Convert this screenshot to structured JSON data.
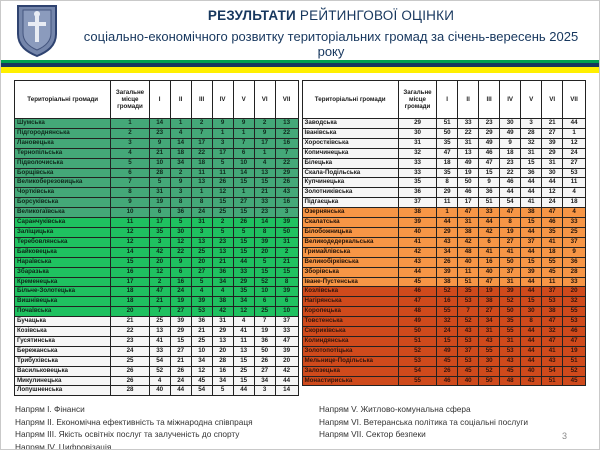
{
  "header": {
    "title_emphasis": "РЕЗУЛЬТАТИ",
    "title_rest": " РЕЙТИНГОВОЇ ОЦІНКИ",
    "subtitle": "соціально-економічного розвитку територіальних громад за січень-вересень 2025 року",
    "logo_icon": "ternopil-oblast-coat-of-arms",
    "title_color": "#17375e",
    "stripe_colors": [
      "#00a04f",
      "#17375e",
      "#ffef00"
    ]
  },
  "colors": {
    "tier_green_top10": "#44a878",
    "tier_green_11_20": "#1fc160",
    "tier_plain": "#f6f6f6",
    "tier_orange_38_45": "#f79646",
    "tier_red_46_55": "#cf4a1c"
  },
  "table": {
    "columns": [
      "Територіальні громади",
      "Загальне місце громади",
      "I",
      "II",
      "III",
      "IV",
      "V",
      "VI",
      "VII"
    ],
    "left_rows": [
      {
        "name": "Шумська",
        "place": "1",
        "scores": [
          "14",
          "1",
          "2",
          "9",
          "9",
          "2",
          "13"
        ],
        "tier": "green1"
      },
      {
        "name": "Підгороднянська",
        "place": "2",
        "scores": [
          "23",
          "4",
          "7",
          "1",
          "1",
          "9",
          "22"
        ],
        "tier": "green1"
      },
      {
        "name": "Лановецька",
        "place": "3",
        "scores": [
          "9",
          "14",
          "17",
          "3",
          "7",
          "17",
          "16"
        ],
        "tier": "green1"
      },
      {
        "name": "Тернопільська",
        "place": "4",
        "scores": [
          "21",
          "18",
          "22",
          "17",
          "6",
          "1",
          "7"
        ],
        "tier": "green1"
      },
      {
        "name": "Підволочиська",
        "place": "5",
        "scores": [
          "10",
          "34",
          "18",
          "5",
          "10",
          "4",
          "22"
        ],
        "tier": "green1"
      },
      {
        "name": "Борщівська",
        "place": "6",
        "scores": [
          "28",
          "2",
          "11",
          "11",
          "14",
          "13",
          "29"
        ],
        "tier": "green1"
      },
      {
        "name": "Великоберезовицька",
        "place": "7",
        "scores": [
          "5",
          "9",
          "13",
          "26",
          "15",
          "15",
          "26"
        ],
        "tier": "green1"
      },
      {
        "name": "Чортківська",
        "place": "8",
        "scores": [
          "31",
          "3",
          "1",
          "12",
          "1",
          "21",
          "43"
        ],
        "tier": "green1"
      },
      {
        "name": "Борсуківська",
        "place": "9",
        "scores": [
          "19",
          "8",
          "8",
          "15",
          "27",
          "33",
          "16"
        ],
        "tier": "green1"
      },
      {
        "name": "Великогаївська",
        "place": "10",
        "scores": [
          "6",
          "36",
          "24",
          "25",
          "15",
          "23",
          "3"
        ],
        "tier": "green1"
      },
      {
        "name": "Саранчуківська",
        "place": "11",
        "scores": [
          "17",
          "5",
          "31",
          "2",
          "26",
          "14",
          "39"
        ],
        "tier": "green2"
      },
      {
        "name": "Заліщицька",
        "place": "12",
        "scores": [
          "35",
          "30",
          "3",
          "5",
          "5",
          "8",
          "50"
        ],
        "tier": "green2"
      },
      {
        "name": "Теребовлянська",
        "place": "12",
        "scores": [
          "3",
          "12",
          "13",
          "23",
          "15",
          "39",
          "31"
        ],
        "tier": "green2"
      },
      {
        "name": "Байковецька",
        "place": "14",
        "scores": [
          "42",
          "22",
          "25",
          "13",
          "15",
          "20",
          "2"
        ],
        "tier": "green2"
      },
      {
        "name": "Нараївська",
        "place": "15",
        "scores": [
          "20",
          "9",
          "20",
          "21",
          "44",
          "5",
          "21"
        ],
        "tier": "green2"
      },
      {
        "name": "Збаразька",
        "place": "16",
        "scores": [
          "12",
          "6",
          "27",
          "36",
          "33",
          "15",
          "15"
        ],
        "tier": "green2"
      },
      {
        "name": "Кременецька",
        "place": "17",
        "scores": [
          "2",
          "16",
          "5",
          "34",
          "29",
          "52",
          "8"
        ],
        "tier": "green2"
      },
      {
        "name": "Більче-Золотецька",
        "place": "18",
        "scores": [
          "47",
          "24",
          "4",
          "4",
          "35",
          "10",
          "39"
        ],
        "tier": "green2"
      },
      {
        "name": "Вишнівецька",
        "place": "18",
        "scores": [
          "21",
          "19",
          "39",
          "38",
          "34",
          "6",
          "6"
        ],
        "tier": "green2"
      },
      {
        "name": "Почаївська",
        "place": "20",
        "scores": [
          "7",
          "27",
          "53",
          "42",
          "12",
          "25",
          "10"
        ],
        "tier": "green2"
      },
      {
        "name": "Бучацька",
        "place": "21",
        "scores": [
          "25",
          "39",
          "36",
          "31",
          "4",
          "7",
          "37"
        ],
        "tier": "plain"
      },
      {
        "name": "Козівська",
        "place": "22",
        "scores": [
          "13",
          "29",
          "21",
          "29",
          "41",
          "19",
          "33"
        ],
        "tier": "plain"
      },
      {
        "name": "Гусятинська",
        "place": "23",
        "scores": [
          "41",
          "15",
          "25",
          "13",
          "11",
          "36",
          "47"
        ],
        "tier": "plain"
      },
      {
        "name": "Бережанська",
        "place": "24",
        "scores": [
          "33",
          "27",
          "10",
          "20",
          "13",
          "50",
          "39"
        ],
        "tier": "plain"
      },
      {
        "name": "Трибухівська",
        "place": "25",
        "scores": [
          "54",
          "21",
          "34",
          "28",
          "15",
          "26",
          "20"
        ],
        "tier": "plain"
      },
      {
        "name": "Васильковецька",
        "place": "26",
        "scores": [
          "52",
          "26",
          "12",
          "16",
          "25",
          "27",
          "42"
        ],
        "tier": "plain"
      },
      {
        "name": "Микулинецька",
        "place": "26",
        "scores": [
          "4",
          "24",
          "45",
          "34",
          "15",
          "34",
          "44"
        ],
        "tier": "plain"
      },
      {
        "name": "Лопушненська",
        "place": "28",
        "scores": [
          "40",
          "44",
          "54",
          "5",
          "44",
          "3",
          "14"
        ],
        "tier": "plain"
      }
    ],
    "right_rows": [
      {
        "name": "Заводська",
        "place": "29",
        "scores": [
          "51",
          "33",
          "23",
          "30",
          "3",
          "21",
          "44"
        ],
        "tier": "plain"
      },
      {
        "name": "Іванівська",
        "place": "30",
        "scores": [
          "50",
          "22",
          "29",
          "49",
          "28",
          "27",
          "1"
        ],
        "tier": "plain"
      },
      {
        "name": "Хоростківська",
        "place": "31",
        "scores": [
          "35",
          "31",
          "49",
          "9",
          "32",
          "39",
          "12"
        ],
        "tier": "plain"
      },
      {
        "name": "Копичинецька",
        "place": "32",
        "scores": [
          "47",
          "13",
          "46",
          "18",
          "31",
          "29",
          "24"
        ],
        "tier": "plain"
      },
      {
        "name": "Білецька",
        "place": "33",
        "scores": [
          "18",
          "49",
          "47",
          "23",
          "15",
          "31",
          "27"
        ],
        "tier": "plain"
      },
      {
        "name": "Скала-Подільська",
        "place": "33",
        "scores": [
          "35",
          "19",
          "15",
          "22",
          "36",
          "30",
          "53"
        ],
        "tier": "plain"
      },
      {
        "name": "Купчинецька",
        "place": "35",
        "scores": [
          "8",
          "50",
          "9",
          "46",
          "44",
          "44",
          "11"
        ],
        "tier": "plain"
      },
      {
        "name": "Золотниківська",
        "place": "36",
        "scores": [
          "29",
          "46",
          "36",
          "44",
          "44",
          "12",
          "4"
        ],
        "tier": "plain"
      },
      {
        "name": "Підгаєцька",
        "place": "37",
        "scores": [
          "11",
          "17",
          "51",
          "54",
          "41",
          "24",
          "18"
        ],
        "tier": "plain"
      },
      {
        "name": "Озернянська",
        "place": "38",
        "scores": [
          "1",
          "47",
          "33",
          "47",
          "38",
          "47",
          "4"
        ],
        "tier": "orange"
      },
      {
        "name": "Скалатська",
        "place": "39",
        "scores": [
          "44",
          "31",
          "44",
          "8",
          "15",
          "46",
          "33"
        ],
        "tier": "orange"
      },
      {
        "name": "Білобожницька",
        "place": "40",
        "scores": [
          "29",
          "38",
          "42",
          "19",
          "44",
          "35",
          "25"
        ],
        "tier": "orange"
      },
      {
        "name": "Великодедеркальська",
        "place": "41",
        "scores": [
          "43",
          "42",
          "6",
          "27",
          "37",
          "41",
          "37"
        ],
        "tier": "orange"
      },
      {
        "name": "Гримайлівська",
        "place": "42",
        "scores": [
          "34",
          "48",
          "41",
          "41",
          "44",
          "18",
          "9"
        ],
        "tier": "orange"
      },
      {
        "name": "Великобірківська",
        "place": "43",
        "scores": [
          "26",
          "40",
          "16",
          "50",
          "15",
          "55",
          "36"
        ],
        "tier": "orange"
      },
      {
        "name": "Зборівська",
        "place": "44",
        "scores": [
          "39",
          "11",
          "40",
          "37",
          "39",
          "45",
          "28"
        ],
        "tier": "orange"
      },
      {
        "name": "Іване-Пустенська",
        "place": "45",
        "scores": [
          "38",
          "51",
          "47",
          "31",
          "44",
          "11",
          "33"
        ],
        "tier": "orange"
      },
      {
        "name": "Козлівська",
        "place": "46",
        "scores": [
          "52",
          "35",
          "19",
          "39",
          "44",
          "37",
          "20"
        ],
        "tier": "red"
      },
      {
        "name": "Нагірянська",
        "place": "47",
        "scores": [
          "16",
          "53",
          "38",
          "52",
          "15",
          "53",
          "32"
        ],
        "tier": "red"
      },
      {
        "name": "Коропецька",
        "place": "48",
        "scores": [
          "55",
          "7",
          "27",
          "50",
          "30",
          "38",
          "55"
        ],
        "tier": "red"
      },
      {
        "name": "Товстенська",
        "place": "49",
        "scores": [
          "32",
          "52",
          "34",
          "35",
          "8",
          "47",
          "53"
        ],
        "tier": "red"
      },
      {
        "name": "Скориківська",
        "place": "50",
        "scores": [
          "24",
          "43",
          "31",
          "55",
          "44",
          "32",
          "46"
        ],
        "tier": "red"
      },
      {
        "name": "Колиндянська",
        "place": "51",
        "scores": [
          "15",
          "53",
          "43",
          "31",
          "44",
          "47",
          "47"
        ],
        "tier": "red"
      },
      {
        "name": "Золотопотіцька",
        "place": "52",
        "scores": [
          "49",
          "37",
          "55",
          "53",
          "44",
          "41",
          "19"
        ],
        "tier": "red"
      },
      {
        "name": "Мельнице-Подільська",
        "place": "53",
        "scores": [
          "45",
          "53",
          "30",
          "43",
          "44",
          "43",
          "51"
        ],
        "tier": "red"
      },
      {
        "name": "Залозецька",
        "place": "54",
        "scores": [
          "26",
          "45",
          "52",
          "45",
          "40",
          "54",
          "52"
        ],
        "tier": "red"
      },
      {
        "name": "Монастириська",
        "place": "55",
        "scores": [
          "46",
          "40",
          "50",
          "48",
          "43",
          "51",
          "45"
        ],
        "tier": "red"
      }
    ]
  },
  "legend": {
    "left": [
      "Напрям I. Фінанси",
      "Напрям II. Економічна ефективність та міжнародна співпраця",
      "Напрям III. Якість освітніх послуг та залученість до спорту",
      "Напрям IV. Цифровізація"
    ],
    "right": [
      "Напрям V. Житлово-комунальна сфера",
      "Напрям VI. Ветеранська політика та  соціальні послуги",
      "Напрям VII. Сектор безпеки"
    ]
  },
  "footer": {
    "page_number": "3"
  }
}
